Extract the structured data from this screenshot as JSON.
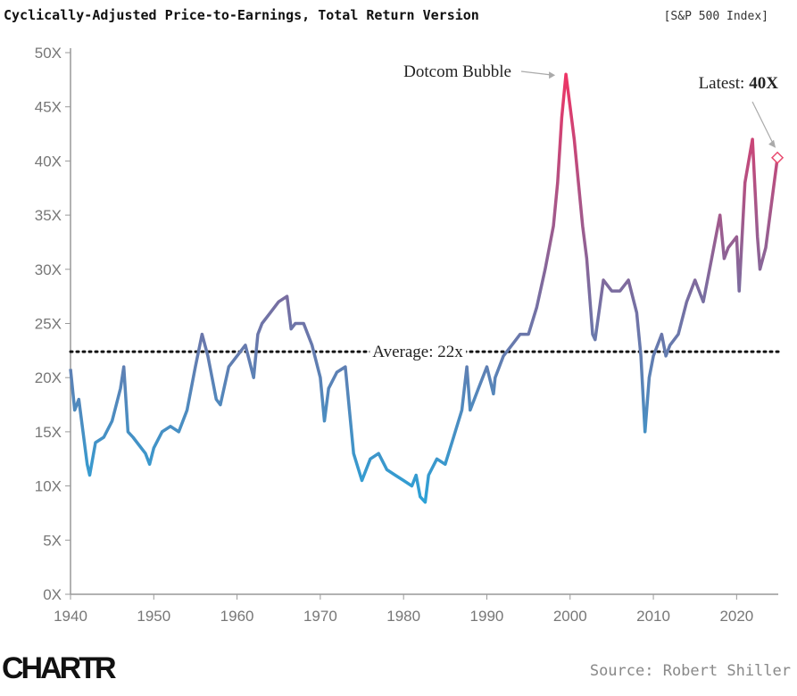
{
  "chart_data": {
    "type": "line",
    "title": "Cyclically-Adjusted Price-to-Earnings, Total Return Version",
    "subtitle": "[S&P 500 Index]",
    "source": "Source: Robert Shiller",
    "logo": "CHARTR",
    "x": [
      1940,
      1940.5,
      1941,
      1941.5,
      1942,
      1942.3,
      1943,
      1944,
      1945,
      1946,
      1946.4,
      1946.9,
      1947.5,
      1948,
      1949,
      1949.5,
      1950,
      1951,
      1952,
      1953,
      1954,
      1955,
      1955.8,
      1956.5,
      1957,
      1957.5,
      1958,
      1959,
      1960,
      1961,
      1961.5,
      1962,
      1962.5,
      1963,
      1964,
      1965,
      1966,
      1966.5,
      1967,
      1968,
      1969,
      1970,
      1970.5,
      1971,
      1972,
      1973,
      1973.5,
      1974,
      1975,
      1976,
      1977,
      1978,
      1979,
      1980,
      1981,
      1981.5,
      1982,
      1982.6,
      1983,
      1984,
      1985,
      1986,
      1987,
      1987.6,
      1988,
      1989,
      1990,
      1990.8,
      1991,
      1992,
      1993,
      1994,
      1995,
      1996,
      1997,
      1998,
      1998.5,
      1999,
      1999.5,
      2000,
      2000.5,
      2001,
      2001.5,
      2002,
      2002.7,
      2003,
      2004,
      2005,
      2006,
      2007,
      2008,
      2008.5,
      2009,
      2009.5,
      2010,
      2011,
      2011.5,
      2012,
      2013,
      2014,
      2015,
      2016,
      2017,
      2018,
      2018.5,
      2019,
      2020,
      2020.3,
      2021,
      2021.9,
      2022.5,
      2022.8,
      2023.5,
      2024,
      2024.9
    ],
    "values": [
      20.8,
      17,
      18,
      15,
      12,
      11,
      14,
      14.5,
      16,
      19,
      21,
      15,
      14.5,
      14,
      13,
      12,
      13.5,
      15,
      15.5,
      15,
      17,
      21,
      24,
      22,
      20,
      18,
      17.5,
      21,
      22,
      23,
      21.5,
      20,
      24,
      25,
      26,
      27,
      27.5,
      24.5,
      25,
      25,
      23,
      20,
      16,
      19,
      20.5,
      21,
      17,
      13,
      10.5,
      12.5,
      13,
      11.5,
      11,
      10.5,
      10,
      11,
      9,
      8.5,
      11,
      12.5,
      12,
      14.5,
      17,
      21,
      17,
      19,
      21,
      18.5,
      20,
      22,
      23,
      24,
      24,
      26.5,
      30,
      34,
      38,
      44,
      48,
      45,
      42,
      38,
      34,
      31,
      24,
      23.5,
      29,
      28,
      28,
      29,
      26,
      22,
      15,
      20,
      22,
      24,
      22,
      23,
      24,
      27,
      29,
      27,
      31,
      35,
      31,
      32,
      33,
      28,
      38,
      42,
      33,
      30,
      32,
      35,
      40.3
    ],
    "gradient": [
      "#2aa3d8",
      "#7b6c9f",
      "#ee3465"
    ],
    "xlim": [
      1940,
      2025
    ],
    "xticks": [
      1940,
      1950,
      1960,
      1970,
      1980,
      1990,
      2000,
      2010,
      2020
    ],
    "ylim": [
      0,
      50
    ],
    "yticks": [
      {
        "value": 0,
        "label": "0X"
      },
      {
        "value": 5,
        "label": "5X"
      },
      {
        "value": 10,
        "label": "10X"
      },
      {
        "value": 15,
        "label": "15X"
      },
      {
        "value": 20,
        "label": "20X"
      },
      {
        "value": 25,
        "label": "25X"
      },
      {
        "value": 30,
        "label": "30X"
      },
      {
        "value": 35,
        "label": "35X"
      },
      {
        "value": 40,
        "label": "40X"
      },
      {
        "value": 45,
        "label": "45X"
      },
      {
        "value": 50,
        "label": "50X"
      }
    ],
    "average": {
      "value": 22.4,
      "label": "Average: 22x"
    },
    "annotations": [
      {
        "text": "Dotcom Bubble",
        "x": 1999.5,
        "y": 48
      },
      {
        "text": "Latest:",
        "bold": "40X",
        "x": 2024.9,
        "y": 40.3
      }
    ]
  }
}
